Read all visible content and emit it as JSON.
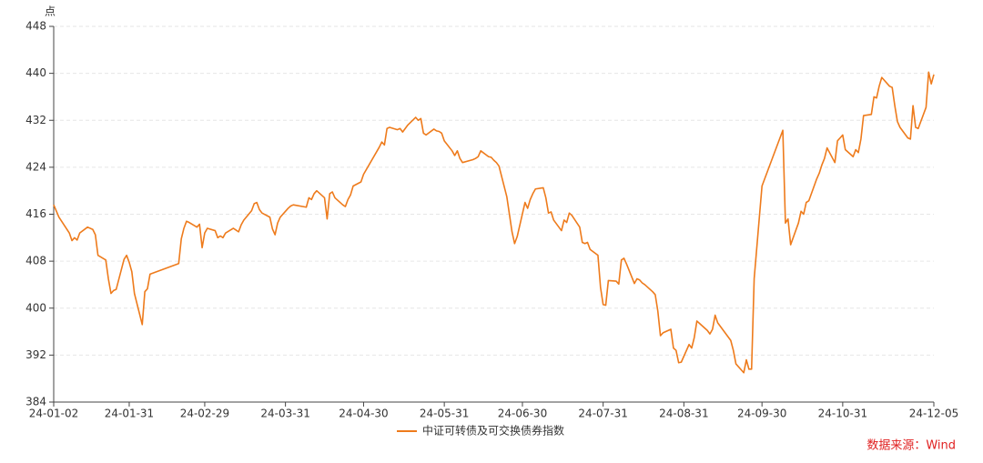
{
  "chart_data": {
    "type": "line",
    "y_label": "点",
    "source": "数据来源：Wind",
    "xlim": [
      "24-01-02",
      "24-12-05"
    ],
    "xticks": [
      "24-01-02",
      "24-01-31",
      "24-02-29",
      "24-03-31",
      "24-04-30",
      "24-05-31",
      "24-06-30",
      "24-07-31",
      "24-08-31",
      "24-09-30",
      "24-10-31",
      "24-12-05"
    ],
    "ylim": [
      384,
      448
    ],
    "yticks": [
      384,
      392,
      400,
      408,
      416,
      424,
      432,
      440,
      448
    ],
    "grid": true,
    "legend": "bottom",
    "x": [
      "24-01-02",
      "24-01-04",
      "24-01-08",
      "24-01-09",
      "24-01-10",
      "24-01-11",
      "24-01-12",
      "24-01-15",
      "24-01-17",
      "24-01-18",
      "24-01-19",
      "24-01-22",
      "24-01-23",
      "24-01-24",
      "24-01-25",
      "24-01-26",
      "24-01-29",
      "24-01-30",
      "24-01-31",
      "24-02-01",
      "24-02-02",
      "24-02-05",
      "24-02-06",
      "24-02-07",
      "24-02-08",
      "24-02-19",
      "24-02-20",
      "24-02-21",
      "24-02-22",
      "24-02-23",
      "24-02-26",
      "24-02-27",
      "24-02-28",
      "24-02-29",
      "24-03-01",
      "24-03-04",
      "24-03-05",
      "24-03-06",
      "24-03-07",
      "24-03-08",
      "24-03-11",
      "24-03-12",
      "24-03-13",
      "24-03-14",
      "24-03-15",
      "24-03-18",
      "24-03-19",
      "24-03-20",
      "24-03-21",
      "24-03-22",
      "24-03-25",
      "24-03-26",
      "24-03-27",
      "24-03-28",
      "24-03-29",
      "24-04-01",
      "24-04-02",
      "24-04-03",
      "24-04-08",
      "24-04-09",
      "24-04-10",
      "24-04-11",
      "24-04-12",
      "24-04-15",
      "24-04-16",
      "24-04-17",
      "24-04-18",
      "24-04-19",
      "24-04-22",
      "24-04-23",
      "24-04-24",
      "24-04-25",
      "24-04-26",
      "24-04-29",
      "24-04-30",
      "24-05-06",
      "24-05-07",
      "24-05-08",
      "24-05-09",
      "24-05-10",
      "24-05-13",
      "24-05-14",
      "24-05-15",
      "24-05-16",
      "24-05-17",
      "24-05-20",
      "24-05-21",
      "24-05-22",
      "24-05-23",
      "24-05-24",
      "24-05-27",
      "24-05-28",
      "24-05-29",
      "24-05-30",
      "24-05-31",
      "24-06-03",
      "24-06-04",
      "24-06-05",
      "24-06-06",
      "24-06-07",
      "24-06-11",
      "24-06-12",
      "24-06-13",
      "24-06-14",
      "24-06-17",
      "24-06-18",
      "24-06-19",
      "24-06-20",
      "24-06-21",
      "24-06-24",
      "24-06-25",
      "24-06-26",
      "24-06-27",
      "24-06-28",
      "24-07-01",
      "24-07-02",
      "24-07-03",
      "24-07-04",
      "24-07-05",
      "24-07-08",
      "24-07-09",
      "24-07-10",
      "24-07-11",
      "24-07-12",
      "24-07-15",
      "24-07-16",
      "24-07-17",
      "24-07-18",
      "24-07-19",
      "24-07-22",
      "24-07-23",
      "24-07-24",
      "24-07-25",
      "24-07-26",
      "24-07-29",
      "24-07-30",
      "24-07-31",
      "24-08-01",
      "24-08-02",
      "24-08-05",
      "24-08-06",
      "24-08-07",
      "24-08-08",
      "24-08-09",
      "24-08-12",
      "24-08-13",
      "24-08-14",
      "24-08-15",
      "24-08-16",
      "24-08-19",
      "24-08-20",
      "24-08-21",
      "24-08-22",
      "24-08-23",
      "24-08-26",
      "24-08-27",
      "24-08-28",
      "24-08-29",
      "24-08-30",
      "24-09-02",
      "24-09-03",
      "24-09-04",
      "24-09-05",
      "24-09-06",
      "24-09-09",
      "24-09-10",
      "24-09-11",
      "24-09-12",
      "24-09-13",
      "24-09-18",
      "24-09-19",
      "24-09-20",
      "24-09-23",
      "24-09-24",
      "24-09-25",
      "24-09-26",
      "24-09-27",
      "24-09-30",
      "24-10-08",
      "24-10-09",
      "24-10-10",
      "24-10-11",
      "24-10-14",
      "24-10-15",
      "24-10-16",
      "24-10-17",
      "24-10-18",
      "24-10-21",
      "24-10-22",
      "24-10-23",
      "24-10-24",
      "24-10-25",
      "24-10-28",
      "24-10-29",
      "24-10-30",
      "24-10-31",
      "24-11-01",
      "24-11-04",
      "24-11-05",
      "24-11-06",
      "24-11-07",
      "24-11-08",
      "24-11-11",
      "24-11-12",
      "24-11-13",
      "24-11-14",
      "24-11-15",
      "24-11-18",
      "24-11-19",
      "24-11-20",
      "24-11-21",
      "24-11-22",
      "24-11-25",
      "24-11-26",
      "24-11-27",
      "24-11-28",
      "24-11-29",
      "24-12-02",
      "24-12-03",
      "24-12-04",
      "24-12-05"
    ],
    "series": [
      {
        "name": "中证可转债及可交换债券指数",
        "color": "#ee7b1c",
        "values": [
          417.6,
          415.5,
          412.8,
          411.5,
          412,
          411.6,
          412.8,
          413.8,
          413.4,
          412.5,
          409,
          408.2,
          405,
          402.5,
          403,
          403.2,
          408.3,
          409,
          407.8,
          406.2,
          402.5,
          397.2,
          402.8,
          403.3,
          405.8,
          407.6,
          411.8,
          413.6,
          414.8,
          414.6,
          413.8,
          414.3,
          410.3,
          412.8,
          413.6,
          413.2,
          412,
          412.3,
          412,
          412.8,
          413.6,
          413.3,
          413,
          414.2,
          415,
          416.6,
          417.8,
          418,
          416.8,
          416.2,
          415.5,
          413.5,
          412.5,
          414.5,
          415.5,
          417,
          417.4,
          417.6,
          417.2,
          418.8,
          418.5,
          419.5,
          420,
          418.8,
          415.2,
          419.5,
          419.8,
          418.8,
          417.6,
          417.3,
          418.5,
          419.3,
          420.8,
          421.5,
          422.8,
          427.4,
          428.3,
          427.8,
          430.6,
          430.8,
          430.4,
          430.6,
          430,
          430.6,
          431.2,
          432.5,
          432,
          432.3,
          429.8,
          429.5,
          430.5,
          430.2,
          430.1,
          429.8,
          428.5,
          426.8,
          426,
          426.8,
          425.5,
          424.8,
          425.3,
          425.5,
          425.8,
          426.8,
          425.8,
          425.7,
          425.2,
          424.8,
          424.2,
          419,
          416,
          413,
          411,
          412.2,
          418,
          417,
          418.5,
          419.5,
          420.3,
          420.5,
          418.8,
          416.2,
          416.4,
          415,
          413.2,
          415,
          414.6,
          416.2,
          415.8,
          413.8,
          411.2,
          411,
          411.2,
          410,
          409,
          403.5,
          400.6,
          400.5,
          404.7,
          404.6,
          404.1,
          408.2,
          408.5,
          407.5,
          404.2,
          405,
          404.8,
          404.3,
          404,
          402.8,
          402.3,
          399.5,
          395.3,
          395.8,
          396.4,
          393.2,
          392.8,
          390.7,
          390.8,
          393.8,
          393.2,
          395,
          397.8,
          397.4,
          396.2,
          395.6,
          396.4,
          398.8,
          397.5,
          394.5,
          392.8,
          390.5,
          389,
          391.2,
          389.6,
          389.6,
          405,
          420.8,
          430.3,
          414.5,
          415.2,
          410.8,
          414.5,
          416.5,
          416,
          418,
          418.3,
          422,
          423,
          424.4,
          425.5,
          427.3,
          424.8,
          428.5,
          429,
          429.5,
          427,
          425.8,
          427,
          426.5,
          428.8,
          432.8,
          433,
          436,
          435.8,
          437.8,
          439.3,
          437.8,
          437.6,
          434.5,
          431.8,
          430.8,
          429,
          428.8,
          434.5,
          430.8,
          430.6,
          434.2,
          440.2,
          438.2,
          439.8
        ]
      }
    ]
  }
}
